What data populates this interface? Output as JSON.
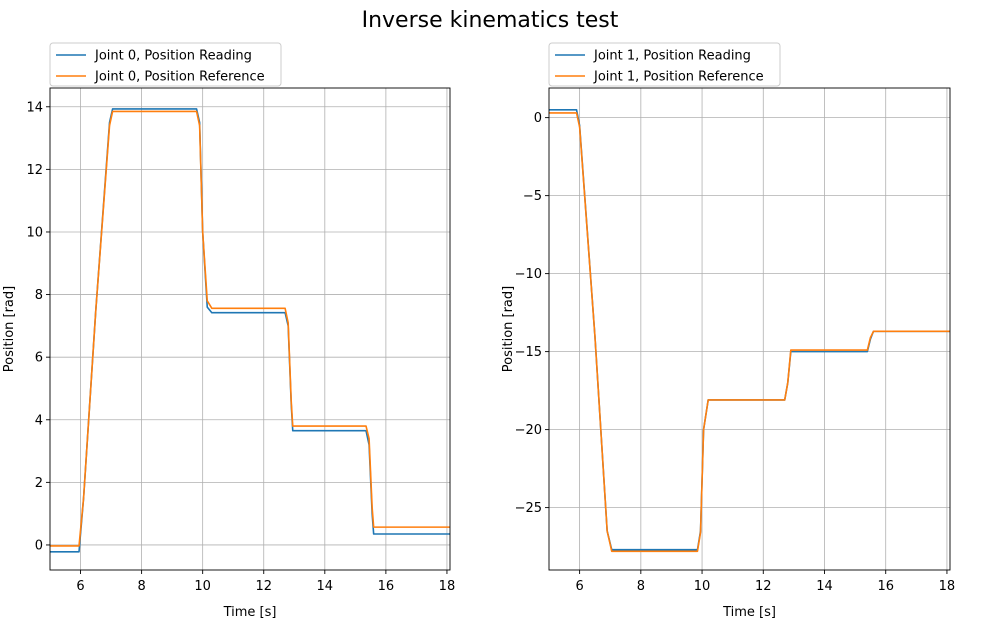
{
  "suptitle": "Inverse kinematics test",
  "colors": {
    "reading": "#1f77b4",
    "reference": "#ff7f0e",
    "grid": "#b0b0b0"
  },
  "chart_data": [
    {
      "type": "line",
      "xlabel": "Time [s]",
      "ylabel": "Position [rad]",
      "xlim": [
        5.0,
        18.1
      ],
      "ylim": [
        -0.8,
        14.6
      ],
      "xticks": [
        6,
        8,
        10,
        12,
        14,
        16,
        18
      ],
      "yticks": [
        0,
        2,
        4,
        6,
        8,
        10,
        12,
        14
      ],
      "grid": true,
      "legend_position": "above-left",
      "series": [
        {
          "name": "Joint 0, Position Reading",
          "color": "#1f77b4",
          "x": [
            5.0,
            5.95,
            6.1,
            6.5,
            6.95,
            7.05,
            9.8,
            9.9,
            10.0,
            10.15,
            10.3,
            12.7,
            12.8,
            12.9,
            12.95,
            15.35,
            15.45,
            15.55,
            15.6,
            18.1
          ],
          "y": [
            -0.22,
            -0.22,
            1.5,
            7.5,
            13.5,
            13.93,
            13.93,
            13.5,
            10.0,
            7.6,
            7.42,
            7.42,
            7.0,
            4.5,
            3.65,
            3.65,
            3.2,
            1.0,
            0.35,
            0.35
          ]
        },
        {
          "name": "Joint 0, Position Reference",
          "color": "#ff7f0e",
          "x": [
            5.0,
            5.95,
            6.1,
            6.5,
            6.95,
            7.05,
            9.8,
            9.9,
            10.0,
            10.15,
            10.3,
            12.7,
            12.8,
            12.9,
            12.95,
            15.35,
            15.45,
            15.55,
            15.6,
            18.1
          ],
          "y": [
            -0.03,
            -0.03,
            1.5,
            7.5,
            13.4,
            13.85,
            13.85,
            13.4,
            10.0,
            7.8,
            7.56,
            7.56,
            7.1,
            4.6,
            3.8,
            3.8,
            3.4,
            1.2,
            0.57,
            0.57
          ]
        }
      ]
    },
    {
      "type": "line",
      "xlabel": "Time [s]",
      "ylabel": "Position [rad]",
      "xlim": [
        5.0,
        18.1
      ],
      "ylim": [
        -29.0,
        1.9
      ],
      "xticks": [
        6,
        8,
        10,
        12,
        14,
        16,
        18
      ],
      "yticks": [
        -25,
        -20,
        -15,
        -10,
        -5,
        0
      ],
      "grid": true,
      "legend_position": "above-left",
      "series": [
        {
          "name": "Joint 1, Position Reading",
          "color": "#1f77b4",
          "x": [
            5.0,
            5.9,
            6.0,
            6.5,
            6.9,
            7.05,
            9.85,
            9.95,
            10.05,
            10.2,
            12.7,
            12.8,
            12.9,
            15.4,
            15.5,
            15.6,
            18.1
          ],
          "y": [
            0.5,
            0.5,
            -0.5,
            -14.0,
            -26.5,
            -27.7,
            -27.7,
            -26.5,
            -20.0,
            -18.1,
            -18.1,
            -17.0,
            -15.0,
            -15.0,
            -14.2,
            -13.7,
            -13.7
          ]
        },
        {
          "name": "Joint 1, Position Reference",
          "color": "#ff7f0e",
          "x": [
            5.0,
            5.9,
            6.0,
            6.5,
            6.9,
            7.05,
            9.85,
            9.95,
            10.05,
            10.2,
            12.7,
            12.8,
            12.9,
            15.4,
            15.5,
            15.6,
            18.1
          ],
          "y": [
            0.3,
            0.3,
            -0.6,
            -14.0,
            -26.5,
            -27.8,
            -27.8,
            -26.6,
            -20.0,
            -18.1,
            -18.1,
            -17.0,
            -14.9,
            -14.9,
            -14.1,
            -13.7,
            -13.7
          ]
        }
      ]
    }
  ]
}
